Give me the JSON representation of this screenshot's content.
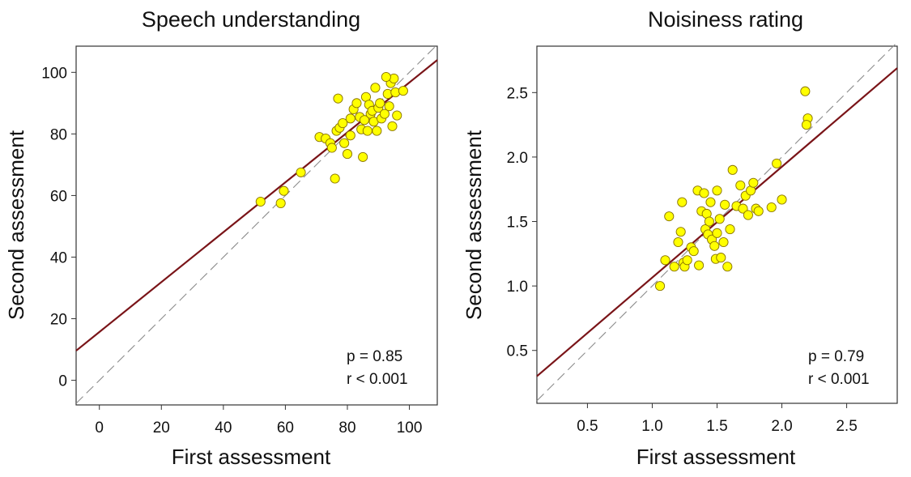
{
  "colors": {
    "point_fill": "#ffff00",
    "point_stroke": "#8a7400",
    "fit_line": "#7a1418",
    "identity_line": "#8c8c8c",
    "frame": "#333333"
  },
  "chart_data": [
    {
      "type": "scatter",
      "title": "Speech understanding",
      "xlabel": "First assessment",
      "ylabel": "Second assessment",
      "xlim": [
        -7.5,
        109
      ],
      "ylim": [
        -8,
        108.5
      ],
      "xticks": [
        0,
        20,
        40,
        60,
        80,
        100
      ],
      "yticks": [
        0,
        20,
        40,
        60,
        80,
        100
      ],
      "xtick_labels": [
        "0",
        "20",
        "40",
        "60",
        "80",
        "100"
      ],
      "ytick_labels": [
        "0",
        "20",
        "40",
        "60",
        "80",
        "100"
      ],
      "annotations": [
        "p = 0.85",
        "r < 0.001"
      ],
      "fit_line": {
        "x": [
          -7.5,
          109
        ],
        "y": [
          9.6,
          104
        ]
      },
      "identity_line": {
        "x": [
          -7.5,
          109
        ],
        "y": [
          -7.5,
          109
        ]
      },
      "grid": false,
      "points": {
        "x": [
          52,
          59.5,
          58.5,
          65,
          71,
          73,
          74.5,
          75,
          76,
          76.5,
          77,
          77.5,
          78.5,
          79,
          80,
          81,
          81,
          82,
          83,
          84,
          84.5,
          85,
          85.5,
          86,
          86.5,
          87,
          87.5,
          88,
          88.5,
          89,
          89.5,
          90,
          90.5,
          91,
          92,
          93,
          93.5,
          94,
          94.5,
          95,
          95.5,
          96,
          98,
          92.5
        ],
        "y": [
          58,
          61.5,
          57.5,
          67.5,
          79,
          78.5,
          77,
          75.5,
          65.5,
          81,
          91.5,
          82,
          83.5,
          77,
          73.5,
          79.5,
          85,
          88,
          90,
          85.5,
          81.5,
          72.5,
          84.5,
          92,
          81,
          89.5,
          86.5,
          87.5,
          84,
          95,
          81,
          88.5,
          90,
          85,
          86.5,
          93,
          89,
          96.5,
          82.5,
          98,
          93.5,
          86,
          94,
          98.5
        ]
      }
    },
    {
      "type": "scatter",
      "title": "Noisiness rating",
      "xlabel": "First assessment",
      "ylabel": "Second assessment",
      "xlim": [
        0.11,
        2.89
      ],
      "ylim": [
        0.09,
        2.86
      ],
      "xticks": [
        0.5,
        1.0,
        1.5,
        2.0,
        2.5
      ],
      "yticks": [
        0.5,
        1.0,
        1.5,
        2.0,
        2.5
      ],
      "xtick_labels": [
        "0.5",
        "1.0",
        "1.5",
        "2.0",
        "2.5"
      ],
      "ytick_labels": [
        "0.5",
        "1.0",
        "1.5",
        "2.0",
        "2.5"
      ],
      "annotations": [
        "p = 0.79",
        "r < 0.001"
      ],
      "fit_line": {
        "x": [
          0.11,
          2.89
        ],
        "y": [
          0.3,
          2.69
        ]
      },
      "identity_line": {
        "x": [
          0.11,
          2.89
        ],
        "y": [
          0.11,
          2.89
        ]
      },
      "grid": false,
      "points": {
        "x": [
          1.06,
          1.1,
          1.13,
          1.17,
          1.2,
          1.22,
          1.23,
          1.24,
          1.25,
          1.27,
          1.3,
          1.32,
          1.35,
          1.36,
          1.38,
          1.4,
          1.41,
          1.42,
          1.43,
          1.44,
          1.45,
          1.46,
          1.48,
          1.49,
          1.5,
          1.5,
          1.52,
          1.53,
          1.55,
          1.56,
          1.58,
          1.6,
          1.62,
          1.65,
          1.68,
          1.7,
          1.72,
          1.74,
          1.76,
          1.78,
          1.8,
          1.82,
          1.92,
          1.96,
          2.0,
          2.18,
          2.2,
          2.19
        ],
        "y": [
          1.0,
          1.2,
          1.54,
          1.15,
          1.34,
          1.42,
          1.65,
          1.18,
          1.15,
          1.2,
          1.3,
          1.27,
          1.74,
          1.16,
          1.58,
          1.72,
          1.44,
          1.56,
          1.4,
          1.5,
          1.65,
          1.36,
          1.31,
          1.21,
          1.41,
          1.74,
          1.52,
          1.22,
          1.34,
          1.63,
          1.15,
          1.44,
          1.9,
          1.62,
          1.78,
          1.6,
          1.7,
          1.55,
          1.74,
          1.8,
          1.6,
          1.58,
          1.61,
          1.95,
          1.67,
          2.51,
          2.3,
          2.25
        ]
      }
    }
  ]
}
